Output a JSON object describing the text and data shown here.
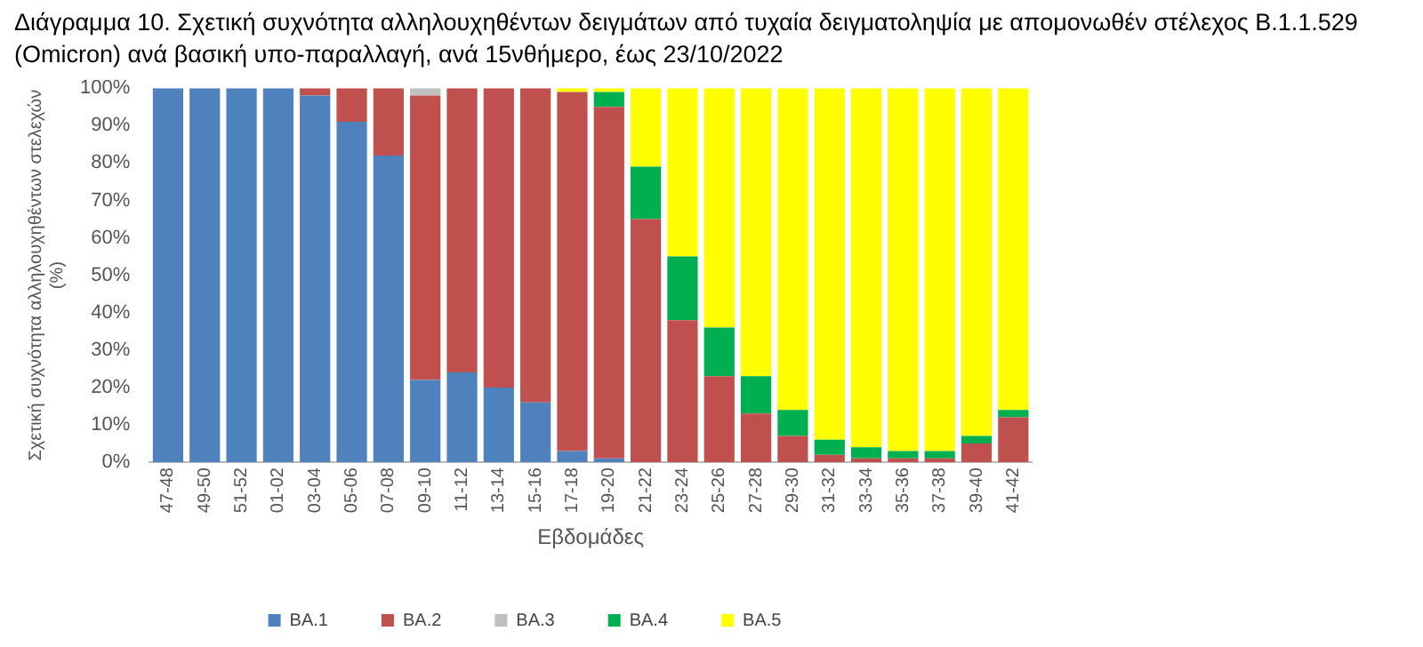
{
  "chart_data": {
    "type": "bar",
    "stacked": true,
    "title": "Διάγραμμα 10. Σχετική συχνότητα αλληλουχηθέντων δειγμάτων από τυχαία δειγματοληψία με απομονωθέν στέλεχος Β.1.1.529 (Omicron) ανά βασική υπο-παραλλαγή, ανά 15νθήμερο, έως 23/10/2022",
    "xlabel": "Εβδομάδες",
    "ylabel": "Σχετική συχνότητα αλληλουχηθέντων στελεχών (%)",
    "categories": [
      "47-48",
      "49-50",
      "51-52",
      "01-02",
      "03-04",
      "05-06",
      "07-08",
      "09-10",
      "11-12",
      "13-14",
      "15-16",
      "17-18",
      "19-20",
      "21-22",
      "23-24",
      "25-26",
      "27-28",
      "29-30",
      "31-32",
      "33-34",
      "35-36",
      "37-38",
      "39-40",
      "41-42"
    ],
    "series": [
      {
        "name": "BA.1",
        "color": "#4f81bd",
        "values": [
          100,
          100,
          100,
          100,
          98,
          91,
          82,
          22,
          24,
          20,
          16,
          3,
          1,
          0,
          0,
          0,
          0,
          0,
          0,
          0,
          0,
          0,
          0,
          0
        ]
      },
      {
        "name": "BA.2",
        "color": "#c0504d",
        "values": [
          0,
          0,
          0,
          0,
          2,
          9,
          18,
          76,
          76,
          80,
          84,
          96,
          94,
          65,
          38,
          23,
          13,
          7,
          2,
          1,
          1,
          1,
          5,
          12
        ]
      },
      {
        "name": "BA.3",
        "color": "#bfbfbf",
        "values": [
          0,
          0,
          0,
          0,
          0,
          0,
          0,
          2,
          0,
          0,
          0,
          0,
          0,
          0,
          0,
          0,
          0,
          0,
          0,
          0,
          0,
          0,
          0,
          0
        ]
      },
      {
        "name": "BA.4",
        "color": "#00b050",
        "values": [
          0,
          0,
          0,
          0,
          0,
          0,
          0,
          0,
          0,
          0,
          0,
          0,
          4,
          14,
          17,
          13,
          10,
          7,
          4,
          3,
          2,
          2,
          2,
          2
        ]
      },
      {
        "name": "BA.5",
        "color": "#ffff00",
        "values": [
          0,
          0,
          0,
          0,
          0,
          0,
          0,
          0,
          0,
          0,
          0,
          1,
          1,
          21,
          45,
          64,
          77,
          86,
          94,
          96,
          97,
          97,
          93,
          86
        ]
      }
    ],
    "ylim": [
      0,
      100
    ],
    "yticks": [
      {
        "value": 0,
        "label": "0%"
      },
      {
        "value": 10,
        "label": "10%"
      },
      {
        "value": 20,
        "label": "20%"
      },
      {
        "value": 30,
        "label": "30%"
      },
      {
        "value": 40,
        "label": "40%"
      },
      {
        "value": 50,
        "label": "50%"
      },
      {
        "value": 60,
        "label": "60%"
      },
      {
        "value": 70,
        "label": "70%"
      },
      {
        "value": 80,
        "label": "80%"
      },
      {
        "value": 90,
        "label": "90%"
      },
      {
        "value": 100,
        "label": "100%"
      }
    ],
    "legend": "bottom"
  }
}
